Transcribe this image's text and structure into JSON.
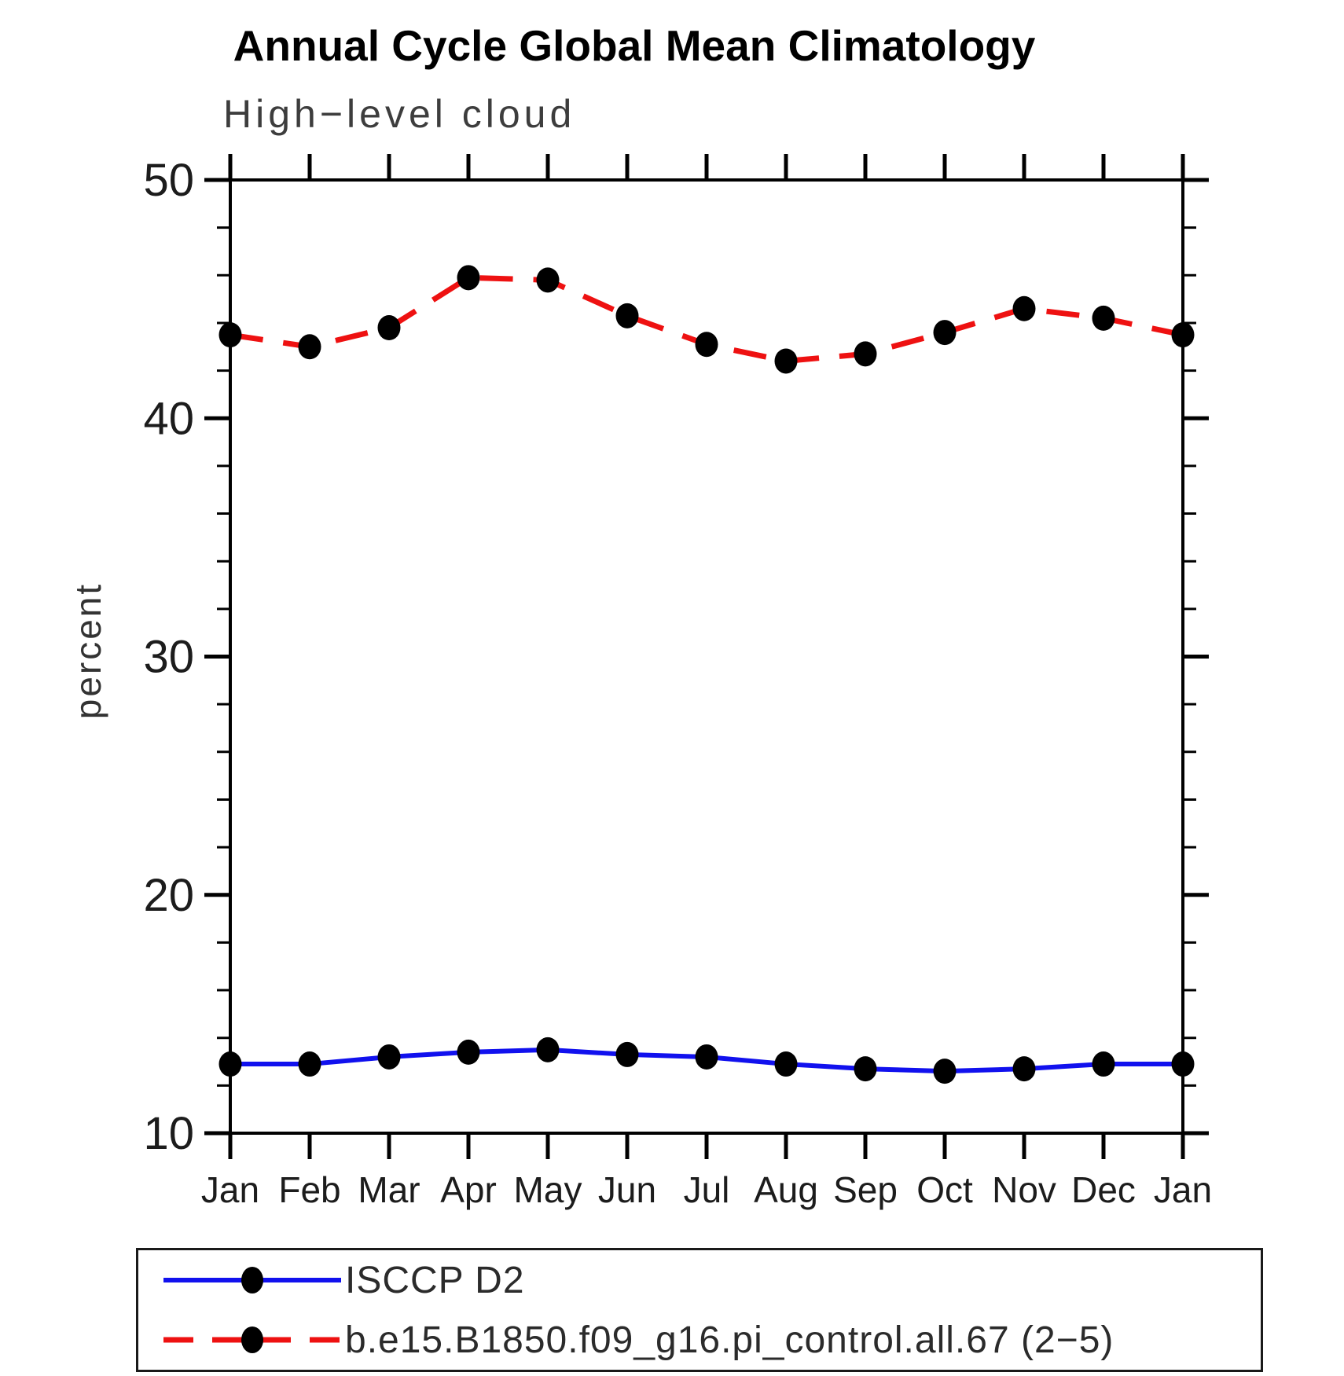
{
  "page": {
    "background": "#ffffff"
  },
  "chart_data": {
    "type": "line",
    "title": "Annual Cycle Global Mean Climatology",
    "subtitle": "High−level cloud",
    "ylabel": "percent",
    "xlabel": "",
    "categories": [
      "Jan",
      "Feb",
      "Mar",
      "Apr",
      "May",
      "Jun",
      "Jul",
      "Aug",
      "Sep",
      "Oct",
      "Nov",
      "Dec",
      "Jan"
    ],
    "ylim": [
      10,
      50
    ],
    "y_major_ticks": [
      10,
      20,
      30,
      40,
      50
    ],
    "y_minor_step": 2,
    "grid": false,
    "legend_position": "bottom-left-box",
    "marker": "filled-black-dot",
    "marker_color": "#000000",
    "axis_color": "#000000",
    "series": [
      {
        "name": "ISCCP D2",
        "style": "solid",
        "color": "#1111ee",
        "values": [
          12.9,
          12.9,
          13.2,
          13.4,
          13.5,
          13.3,
          13.2,
          12.9,
          12.7,
          12.6,
          12.7,
          12.9,
          12.9
        ]
      },
      {
        "name": "b.e15.B1850.f09_g16.pi_control.all.67 (2−5)",
        "style": "dashed",
        "color": "#ee1111",
        "values": [
          43.5,
          43.0,
          43.8,
          45.9,
          45.8,
          44.3,
          43.1,
          42.4,
          42.7,
          43.6,
          44.6,
          44.2,
          43.5
        ]
      }
    ]
  }
}
